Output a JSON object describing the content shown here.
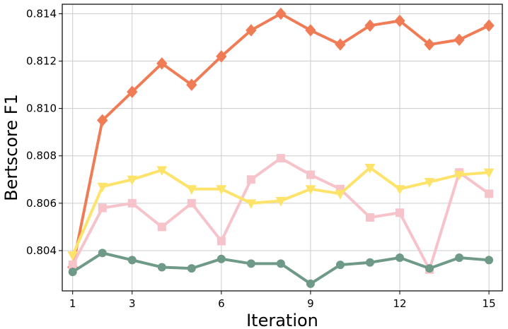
{
  "chart_data": {
    "type": "line",
    "title": "",
    "xlabel": "Iteration",
    "ylabel": "Bertscore F1",
    "xlim": [
      0.65,
      15.45
    ],
    "ylim": [
      0.8023,
      0.8144
    ],
    "x_ticks": [
      1,
      3,
      6,
      9,
      12,
      15
    ],
    "x_tick_labels": [
      "1",
      "3",
      "6",
      "9",
      "12",
      "15"
    ],
    "y_ticks": [
      0.804,
      0.806,
      0.808,
      0.81,
      0.812,
      0.814
    ],
    "y_tick_labels": [
      "0.804",
      "0.806",
      "0.808",
      "0.810",
      "0.812",
      "0.814"
    ],
    "grid": true,
    "legend": "none",
    "x": [
      1,
      2,
      3,
      4,
      5,
      6,
      7,
      8,
      9,
      10,
      11,
      12,
      13,
      14,
      15
    ],
    "series": [
      {
        "color": "#f07c56",
        "marker": "diamond",
        "values": [
          0.8033,
          0.8095,
          0.8107,
          0.8119,
          0.811,
          0.8122,
          0.8133,
          0.814,
          0.8133,
          0.8127,
          0.8135,
          0.8137,
          0.8127,
          0.8129,
          0.8135
        ]
      },
      {
        "color": "#f7c3cb",
        "marker": "square",
        "values": [
          0.8034,
          0.8058,
          0.806,
          0.805,
          0.806,
          0.8044,
          0.807,
          0.8079,
          0.8072,
          0.8066,
          0.8054,
          0.8056,
          0.8032,
          0.8073,
          0.8064
        ]
      },
      {
        "color": "#fde36a",
        "marker": "triangle-down",
        "values": [
          0.8038,
          0.8067,
          0.807,
          0.8074,
          0.8066,
          0.8066,
          0.806,
          0.8061,
          0.8066,
          0.8064,
          0.8075,
          0.8066,
          0.8069,
          0.8072,
          0.8073
        ]
      },
      {
        "color": "#6f9a88",
        "marker": "circle",
        "values": [
          0.8031,
          0.8039,
          0.8036,
          0.8033,
          0.80325,
          0.80365,
          0.80345,
          0.80345,
          0.8026,
          0.8034,
          0.8035,
          0.8037,
          0.80325,
          0.8037,
          0.8036
        ]
      }
    ]
  }
}
